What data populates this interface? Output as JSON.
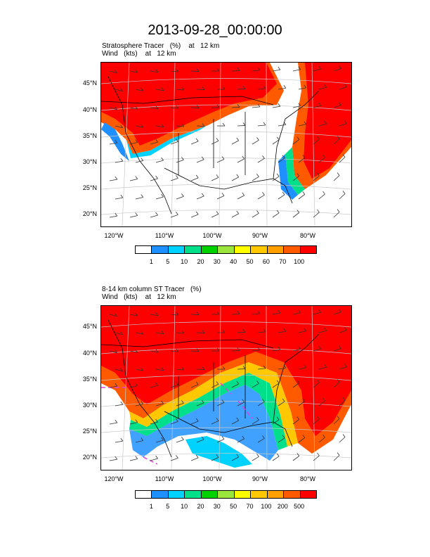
{
  "title": "2013-09-28_00:00:00",
  "panels": [
    {
      "line1": "Stratosphere Tracer   (%)    at   12 km",
      "line2": "Wind   (kts)    at   12 km",
      "lat_labels": [
        "45°N",
        "40°N",
        "35°N",
        "30°N",
        "25°N",
        "20°N"
      ],
      "lon_labels": [
        "120°W",
        "110°W",
        "100°W",
        "90°W",
        "80°W"
      ],
      "colorbar": {
        "colors": [
          "#ffffff",
          "#1e90ff",
          "#00d2ff",
          "#00e08a",
          "#00d200",
          "#9be63c",
          "#ffff00",
          "#ffc800",
          "#ffa000",
          "#ff5a00",
          "#ff0000"
        ],
        "labels": [
          "1",
          "5",
          "10",
          "20",
          "30",
          "40",
          "50",
          "60",
          "70",
          "100"
        ]
      }
    },
    {
      "line1": "8-14 km column ST Tracer   (%)",
      "line2": "Wind   (kts)    at   12 km",
      "lat_labels": [
        "45°N",
        "40°N",
        "35°N",
        "30°N",
        "25°N",
        "20°N"
      ],
      "lon_labels": [
        "120°W",
        "110°W",
        "100°W",
        "90°W",
        "80°W"
      ],
      "colorbar": {
        "colors": [
          "#ffffff",
          "#1e90ff",
          "#00d2ff",
          "#00e08a",
          "#00d200",
          "#9be63c",
          "#ffff00",
          "#ffc800",
          "#ffa000",
          "#ff5a00",
          "#ff0000"
        ],
        "labels": [
          "1",
          "5",
          "10",
          "20",
          "30",
          "50",
          "70",
          "100",
          "200",
          "500"
        ]
      }
    }
  ]
}
